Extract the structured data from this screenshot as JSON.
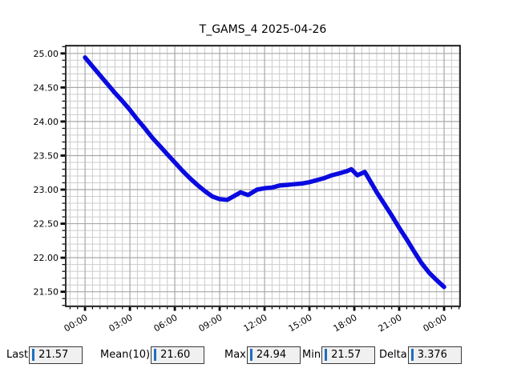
{
  "title": "T_GAMS_4 2025-04-26",
  "chart_data": {
    "type": "line",
    "title": "T_GAMS_4 2025-04-26",
    "xlabel": "",
    "ylabel": "",
    "series_name": "T_GAMS_4",
    "series_color": "#0a0ae0",
    "x_unit": "hours",
    "x": [
      0,
      0.5,
      1,
      1.5,
      2,
      2.5,
      3,
      3.5,
      4,
      4.5,
      5,
      5.5,
      6,
      6.5,
      7,
      7.5,
      8,
      8.5,
      9,
      9.5,
      10,
      10.4,
      10.9,
      11.5,
      12,
      12.5,
      13,
      13.5,
      14,
      14.5,
      15,
      15.5,
      16,
      16.5,
      17,
      17.5,
      17.8,
      18.2,
      18.7,
      19,
      19.5,
      20,
      20.5,
      21,
      21.5,
      22,
      22.5,
      23,
      23.5,
      24
    ],
    "values": [
      24.94,
      24.81,
      24.68,
      24.55,
      24.42,
      24.3,
      24.17,
      24.03,
      23.9,
      23.76,
      23.64,
      23.52,
      23.4,
      23.28,
      23.17,
      23.07,
      22.98,
      22.9,
      22.86,
      22.85,
      22.91,
      22.96,
      22.92,
      23.0,
      23.02,
      23.03,
      23.06,
      23.07,
      23.08,
      23.09,
      23.11,
      23.14,
      23.17,
      23.21,
      23.24,
      23.27,
      23.3,
      23.21,
      23.26,
      23.15,
      22.96,
      22.79,
      22.62,
      22.44,
      22.27,
      22.09,
      21.92,
      21.78,
      21.67,
      21.57
    ],
    "x_tick_hours": [
      0,
      3,
      6,
      9,
      12,
      15,
      18,
      21,
      24
    ],
    "x_tick_labels": [
      "00:00",
      "03:00",
      "06:00",
      "09:00",
      "12:00",
      "15:00",
      "18:00",
      "21:00",
      "00:00"
    ],
    "y_ticks": [
      21.5,
      22.0,
      22.5,
      23.0,
      23.5,
      24.0,
      24.5,
      25.0
    ],
    "y_tick_labels": [
      "21.50",
      "22.00",
      "22.50",
      "23.00",
      "23.50",
      "24.00",
      "24.50",
      "25.00"
    ],
    "x_minor_step_hours": 0.5,
    "y_minor_step": 0.1,
    "xlim": [
      -1.29,
      25.07
    ],
    "ylim": [
      21.285,
      25.115
    ],
    "grid": true,
    "grid_minor_color": "#cccccc",
    "grid_major_color": "#a8a8a8",
    "legend": "none"
  },
  "stats": {
    "cursor_color": "#1f6fbe",
    "items": [
      {
        "label": "Last",
        "value": "21.57"
      },
      {
        "label": "Mean(10)",
        "value": "21.60"
      },
      {
        "label": "Max",
        "value": "24.94"
      },
      {
        "label": "Min",
        "value": "21.57"
      },
      {
        "label": "Delta",
        "value": "3.376"
      }
    ]
  }
}
